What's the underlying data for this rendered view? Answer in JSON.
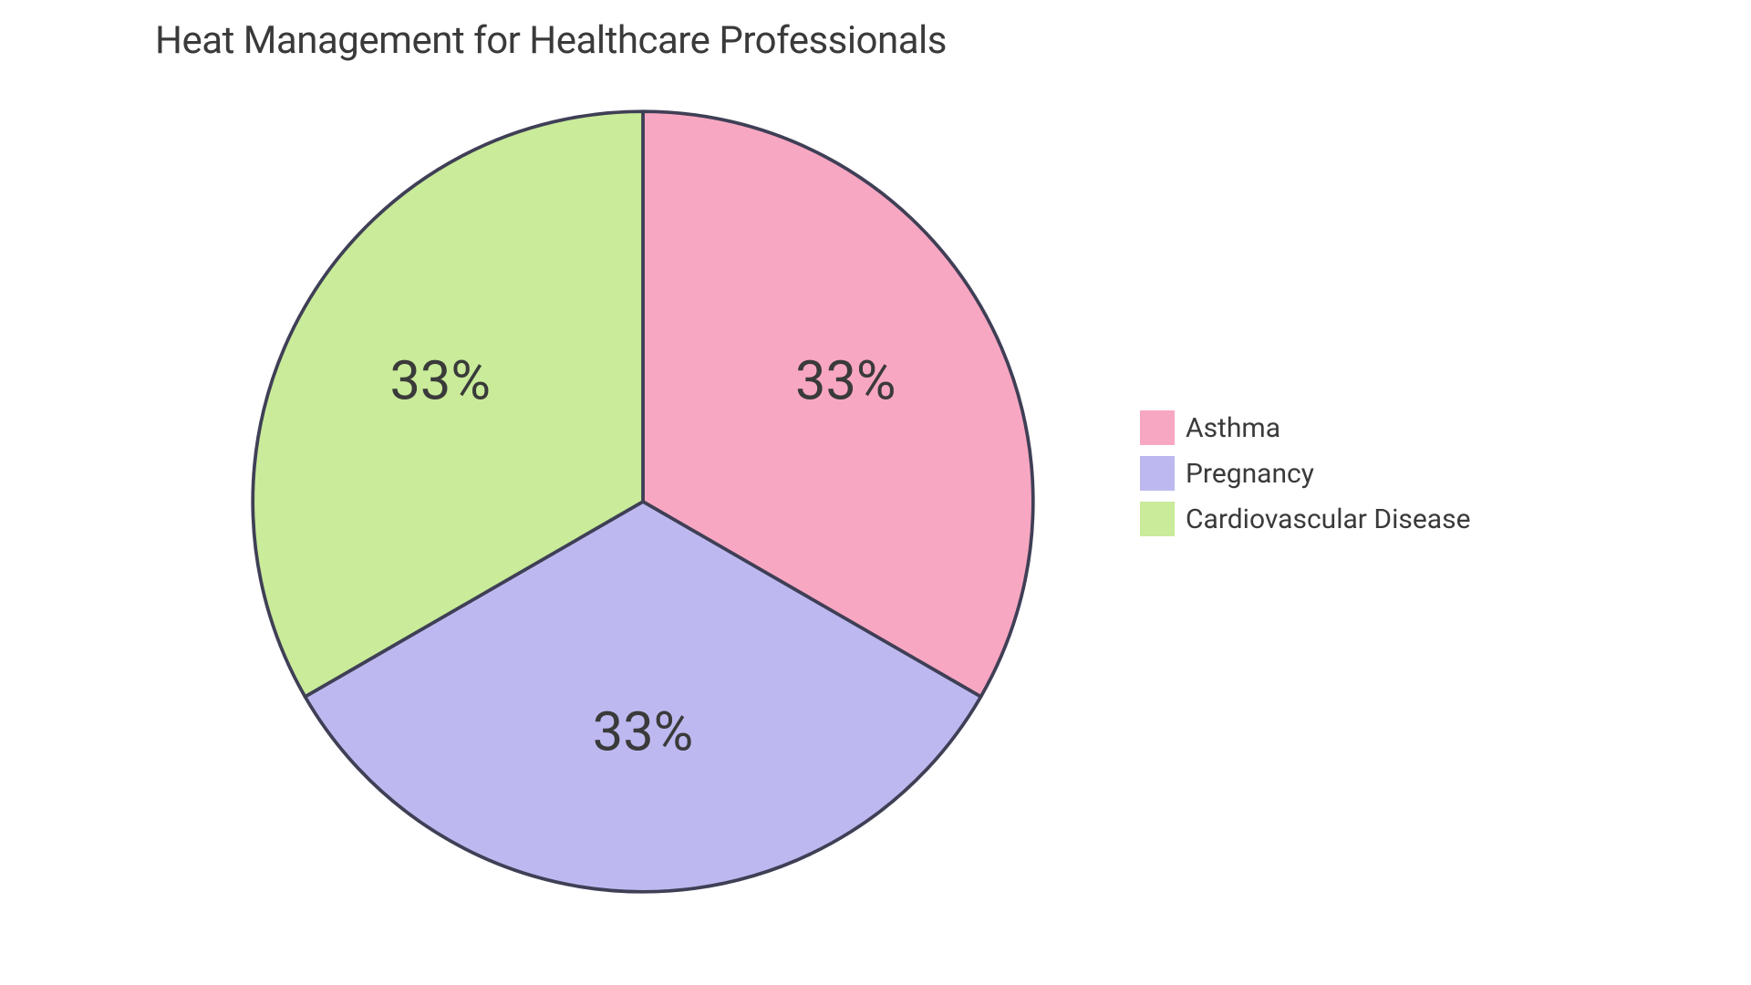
{
  "chart": {
    "type": "pie",
    "title": "Heat Management for Healthcare Professionals",
    "title_fontsize": 42,
    "title_color": "#3a3a3a",
    "background_color": "#ffffff",
    "slices": [
      {
        "label": "Asthma",
        "value": 33,
        "value_text": "33%",
        "color": "#f8a7c2"
      },
      {
        "label": "Pregnancy",
        "value": 33,
        "value_text": "33%",
        "color": "#bdb9f0"
      },
      {
        "label": "Cardiovascular Disease",
        "value": 33,
        "value_text": "33%",
        "color": "#c9eb9a"
      }
    ],
    "stroke_color": "#3f3f56",
    "stroke_width": 2,
    "slice_label_fontsize": 32,
    "slice_label_color": "#3a3a3a",
    "legend": {
      "position": "right",
      "swatch_size": 38,
      "label_fontsize": 30,
      "label_color": "#3a3a3a"
    }
  }
}
